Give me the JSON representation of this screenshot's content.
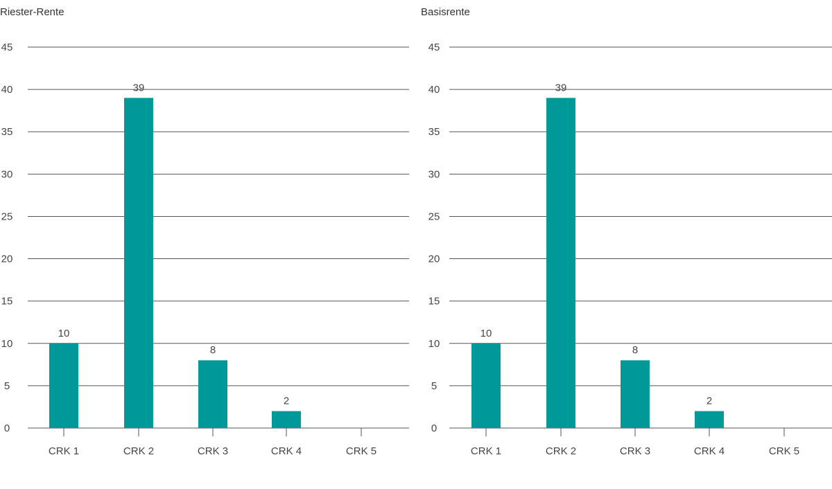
{
  "colors": {
    "bar": "#009999",
    "grid": "#555555",
    "text": "#444444"
  },
  "chart_data": [
    {
      "type": "bar",
      "title": "Riester-Rente",
      "categories": [
        "CRK 1",
        "CRK 2",
        "CRK 3",
        "CRK 4",
        "CRK 5"
      ],
      "values": [
        10,
        39,
        8,
        2,
        null
      ],
      "value_labels": [
        "10",
        "39",
        "8",
        "2",
        ""
      ],
      "ylim": [
        0,
        45
      ],
      "yticks": [
        0,
        5,
        10,
        15,
        20,
        25,
        30,
        35,
        40,
        45
      ],
      "grid": true,
      "legend": "none"
    },
    {
      "type": "bar",
      "title": "Basisrente",
      "categories": [
        "CRK 1",
        "CRK 2",
        "CRK 3",
        "CRK 4",
        "CRK 5"
      ],
      "values": [
        10,
        39,
        8,
        2,
        null
      ],
      "value_labels": [
        "10",
        "39",
        "8",
        "2",
        ""
      ],
      "ylim": [
        0,
        45
      ],
      "yticks": [
        0,
        5,
        10,
        15,
        20,
        25,
        30,
        35,
        40,
        45
      ],
      "grid": true,
      "legend": "none"
    }
  ]
}
